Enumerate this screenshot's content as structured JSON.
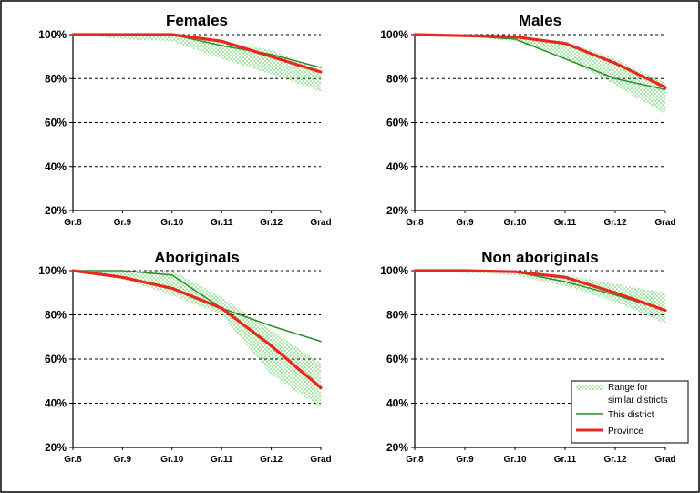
{
  "chart_data": [
    {
      "type": "line",
      "title": "Females",
      "categories": [
        "Gr.8",
        "Gr.9",
        "Gr.10",
        "Gr.11",
        "Gr.12",
        "Grad"
      ],
      "y_ticks": [
        "20%",
        "40%",
        "60%",
        "80%",
        "100%"
      ],
      "ylim": [
        20,
        100
      ],
      "grid": "horizontal dashed",
      "range": {
        "upper": [
          100,
          100,
          100,
          97,
          93,
          84
        ],
        "lower": [
          100,
          98,
          97,
          89,
          82,
          74
        ]
      },
      "series": [
        {
          "values": [
            100,
            100,
            100,
            95,
            91,
            85
          ],
          "color": "#2e8b2e"
        },
        {
          "values": [
            100,
            100,
            100,
            97,
            90,
            83
          ],
          "color": "#e8281e"
        }
      ]
    },
    {
      "type": "line",
      "title": "Males",
      "categories": [
        "Gr.8",
        "Gr.9",
        "Gr.10",
        "Gr.11",
        "Gr.12",
        "Grad"
      ],
      "y_ticks": [
        "20%",
        "40%",
        "60%",
        "80%",
        "100%"
      ],
      "ylim": [
        20,
        100
      ],
      "grid": "horizontal dashed",
      "range": {
        "upper": [
          100,
          100,
          99,
          97,
          89,
          78
        ],
        "lower": [
          100,
          99,
          97,
          89,
          77,
          64
        ]
      },
      "series": [
        {
          "values": [
            100,
            99.5,
            98,
            89,
            80,
            75
          ],
          "color": "#2e8b2e"
        },
        {
          "values": [
            100,
            99.5,
            99,
            96,
            87,
            76
          ],
          "color": "#e8281e"
        }
      ]
    },
    {
      "type": "line",
      "title": "Aboriginals",
      "categories": [
        "Gr.8",
        "Gr.9",
        "Gr.10",
        "Gr.11",
        "Gr.12",
        "Grad"
      ],
      "y_ticks": [
        "20%",
        "40%",
        "60%",
        "80%",
        "100%"
      ],
      "ylim": [
        20,
        100
      ],
      "grid": "horizontal dashed",
      "range": {
        "upper": [
          100,
          100,
          100,
          88,
          73,
          58
        ],
        "lower": [
          100,
          96,
          89,
          80,
          53,
          38
        ]
      },
      "series": [
        {
          "values": [
            100,
            100,
            98,
            83,
            75,
            68
          ],
          "color": "#2e8b2e"
        },
        {
          "values": [
            100,
            97,
            92,
            83,
            66,
            47
          ],
          "color": "#e8281e"
        }
      ]
    },
    {
      "type": "line",
      "title": "Non aboriginals",
      "categories": [
        "Gr.8",
        "Gr.9",
        "Gr.10",
        "Gr.11",
        "Gr.12",
        "Grad"
      ],
      "y_ticks": [
        "20%",
        "40%",
        "60%",
        "80%",
        "100%"
      ],
      "ylim": [
        20,
        100
      ],
      "grid": "horizontal dashed",
      "range": {
        "upper": [
          100,
          100,
          100,
          98,
          94,
          90
        ],
        "lower": [
          100,
          99,
          98,
          93,
          86,
          76
        ]
      },
      "series": [
        {
          "values": [
            100,
            100,
            99.5,
            95,
            89,
            82
          ],
          "color": "#2e8b2e"
        },
        {
          "values": [
            100,
            100,
            99.5,
            97,
            90,
            82
          ],
          "color": "#e8281e"
        }
      ]
    }
  ],
  "legend": {
    "range_line1": "Range for",
    "range_line2": "similar districts",
    "district": "This district",
    "province": "Province",
    "placement": "bottom-right of last panel"
  },
  "colors": {
    "range_dots": "#44cc44",
    "district": "#2e8b2e",
    "province": "#e8281e"
  }
}
